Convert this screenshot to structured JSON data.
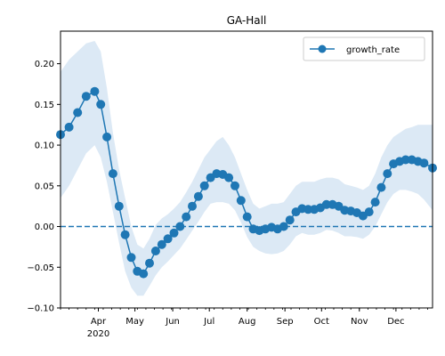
{
  "chart_data": {
    "type": "line",
    "title": "GA-Hall",
    "xlabel": "",
    "ylabel": "",
    "x_range": [
      "2020-03-01",
      "2020-12-31"
    ],
    "ylim": [
      -0.1,
      0.24
    ],
    "yticks": [
      -0.1,
      -0.05,
      0.0,
      0.05,
      0.1,
      0.15,
      0.2
    ],
    "ytick_labels": [
      "−0.10",
      "−0.05",
      "0.00",
      "0.05",
      "0.10",
      "0.15",
      "0.20"
    ],
    "xticks": [
      {
        "date": "2020-04-01",
        "label": "Apr",
        "sublabel": "2020"
      },
      {
        "date": "2020-05-01",
        "label": "May",
        "sublabel": ""
      },
      {
        "date": "2020-06-01",
        "label": "Jun",
        "sublabel": ""
      },
      {
        "date": "2020-07-01",
        "label": "Jul",
        "sublabel": ""
      },
      {
        "date": "2020-08-01",
        "label": "Aug",
        "sublabel": ""
      },
      {
        "date": "2020-09-01",
        "label": "Sep",
        "sublabel": ""
      },
      {
        "date": "2020-10-01",
        "label": "Oct",
        "sublabel": ""
      },
      {
        "date": "2020-11-01",
        "label": "Nov",
        "sublabel": ""
      },
      {
        "date": "2020-12-01",
        "label": "Dec",
        "sublabel": ""
      }
    ],
    "legend": {
      "position": "top-right",
      "entries": [
        "growth_rate"
      ]
    },
    "grid": false,
    "reference_line": {
      "y": 0.0,
      "style": "dashed"
    },
    "series": [
      {
        "name": "growth_rate",
        "color": "#1f77b4",
        "band_color": "#dce9f5",
        "marker": "circle",
        "x": [
          "2020-03-01",
          "2020-03-08",
          "2020-03-15",
          "2020-03-22",
          "2020-03-29",
          "2020-04-03",
          "2020-04-08",
          "2020-04-13",
          "2020-04-18",
          "2020-04-23",
          "2020-04-28",
          "2020-05-03",
          "2020-05-08",
          "2020-05-13",
          "2020-05-18",
          "2020-05-23",
          "2020-05-28",
          "2020-06-02",
          "2020-06-07",
          "2020-06-12",
          "2020-06-17",
          "2020-06-22",
          "2020-06-27",
          "2020-07-02",
          "2020-07-07",
          "2020-07-12",
          "2020-07-17",
          "2020-07-22",
          "2020-07-27",
          "2020-08-01",
          "2020-08-06",
          "2020-08-11",
          "2020-08-16",
          "2020-08-21",
          "2020-08-26",
          "2020-08-31",
          "2020-09-05",
          "2020-09-10",
          "2020-09-15",
          "2020-09-20",
          "2020-09-25",
          "2020-09-30",
          "2020-10-05",
          "2020-10-10",
          "2020-10-15",
          "2020-10-20",
          "2020-10-25",
          "2020-10-30",
          "2020-11-04",
          "2020-11-09",
          "2020-11-14",
          "2020-11-19",
          "2020-11-24",
          "2020-11-29",
          "2020-12-04",
          "2020-12-09",
          "2020-12-14",
          "2020-12-19",
          "2020-12-24",
          "2020-12-31"
        ],
        "values": [
          0.113,
          0.122,
          0.14,
          0.16,
          0.166,
          0.15,
          0.11,
          0.065,
          0.025,
          -0.01,
          -0.038,
          -0.055,
          -0.058,
          -0.045,
          -0.03,
          -0.022,
          -0.015,
          -0.008,
          0.0,
          0.012,
          0.025,
          0.037,
          0.05,
          0.06,
          0.065,
          0.064,
          0.06,
          0.05,
          0.032,
          0.012,
          -0.003,
          -0.005,
          -0.003,
          -0.001,
          -0.003,
          0.0,
          0.008,
          0.018,
          0.022,
          0.021,
          0.021,
          0.023,
          0.027,
          0.027,
          0.025,
          0.02,
          0.019,
          0.017,
          0.013,
          0.018,
          0.03,
          0.048,
          0.065,
          0.077,
          0.08,
          0.082,
          0.082,
          0.08,
          0.078,
          0.072
        ],
        "lower": [
          0.035,
          0.05,
          0.07,
          0.09,
          0.1,
          0.085,
          0.055,
          0.018,
          -0.02,
          -0.055,
          -0.075,
          -0.085,
          -0.085,
          -0.073,
          -0.06,
          -0.05,
          -0.043,
          -0.035,
          -0.027,
          -0.016,
          -0.005,
          0.006,
          0.018,
          0.028,
          0.03,
          0.03,
          0.028,
          0.02,
          0.005,
          -0.013,
          -0.025,
          -0.03,
          -0.033,
          -0.034,
          -0.033,
          -0.03,
          -0.022,
          -0.012,
          -0.008,
          -0.01,
          -0.01,
          -0.008,
          -0.004,
          -0.005,
          -0.008,
          -0.012,
          -0.012,
          -0.013,
          -0.015,
          -0.01,
          0.0,
          0.015,
          0.03,
          0.04,
          0.045,
          0.045,
          0.043,
          0.04,
          0.033,
          0.02
        ],
        "upper": [
          0.19,
          0.205,
          0.215,
          0.225,
          0.228,
          0.215,
          0.17,
          0.115,
          0.07,
          0.035,
          0.0,
          -0.022,
          -0.027,
          -0.015,
          0.002,
          0.01,
          0.015,
          0.022,
          0.03,
          0.042,
          0.055,
          0.07,
          0.085,
          0.095,
          0.105,
          0.11,
          0.1,
          0.085,
          0.065,
          0.045,
          0.028,
          0.022,
          0.025,
          0.028,
          0.028,
          0.03,
          0.04,
          0.05,
          0.055,
          0.055,
          0.055,
          0.058,
          0.06,
          0.06,
          0.058,
          0.052,
          0.05,
          0.048,
          0.045,
          0.05,
          0.065,
          0.085,
          0.1,
          0.11,
          0.115,
          0.12,
          0.122,
          0.125,
          0.125,
          0.125
        ]
      }
    ]
  }
}
